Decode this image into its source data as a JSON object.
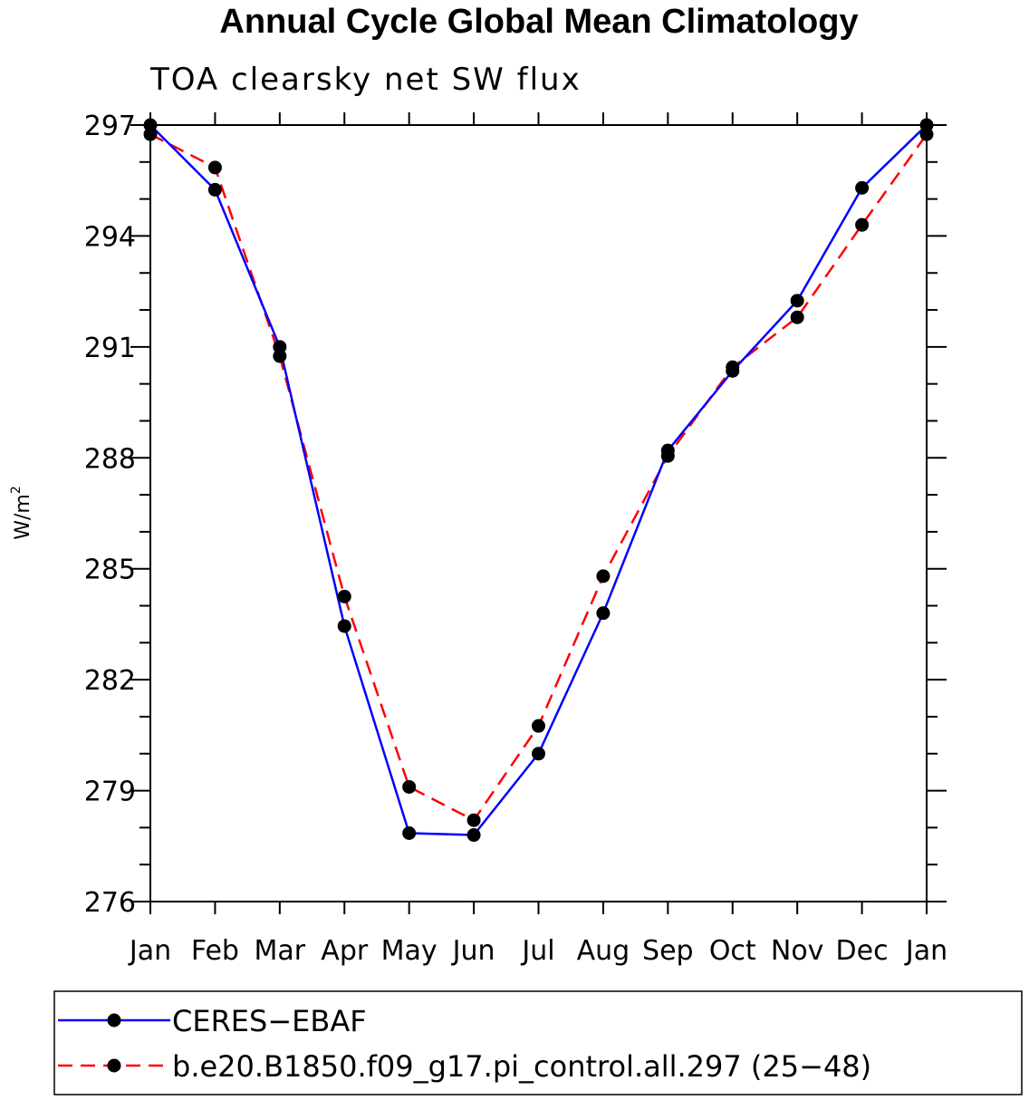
{
  "title": "Annual Cycle Global Mean Climatology",
  "subtitle": "TOA clearsky net SW flux",
  "chart_data": {
    "type": "line",
    "title": "Annual Cycle Global Mean Climatology",
    "subtitle": "TOA clearsky net SW flux",
    "xlabel": "",
    "ylabel": "W/m²",
    "ylabel_main": "W/m",
    "ylabel_sup": "2",
    "ylim": [
      276,
      297
    ],
    "yticks": [
      "276",
      "279",
      "282",
      "285",
      "288",
      "291",
      "294",
      "297"
    ],
    "categories": [
      "Jan",
      "Feb",
      "Mar",
      "Apr",
      "May",
      "Jun",
      "Jul",
      "Aug",
      "Sep",
      "Oct",
      "Nov",
      "Dec",
      "Jan"
    ],
    "legend_position": "bottom",
    "grid": false,
    "series": [
      {
        "name": "CERES−EBAF",
        "color": "#0000ff",
        "dash": "solid",
        "values": [
          297.0,
          295.25,
          291.0,
          283.45,
          277.85,
          277.8,
          280.0,
          283.8,
          288.2,
          290.35,
          292.25,
          295.3,
          297.0
        ]
      },
      {
        "name": "b.e20.B1850.f09_g17.pi_control.all.297 (25−48)",
        "color": "#ff0000",
        "dash": "dashed",
        "values": [
          296.75,
          295.85,
          290.75,
          284.25,
          279.1,
          278.2,
          280.75,
          284.8,
          288.05,
          290.45,
          291.8,
          294.3,
          296.75
        ]
      }
    ]
  }
}
